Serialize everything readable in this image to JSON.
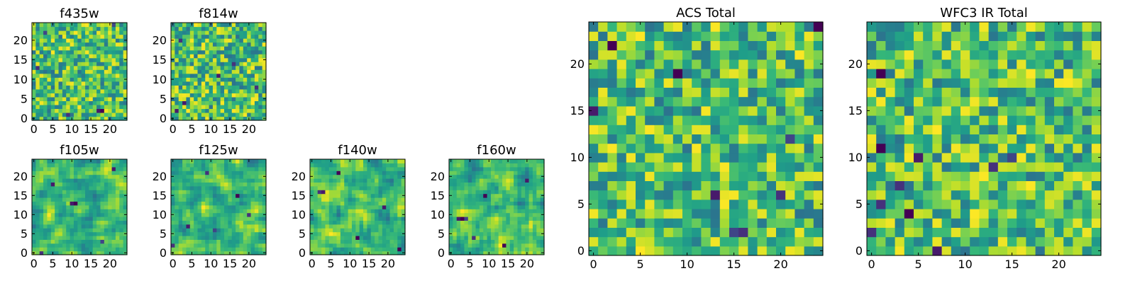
{
  "chart_data": [
    {
      "type": "heatmap",
      "title": "f435w",
      "xticks": [
        0,
        5,
        10,
        15,
        20
      ],
      "yticks": [
        0,
        5,
        10,
        15,
        20
      ],
      "grid_size": 25,
      "xlim": [
        -0.5,
        24.5
      ],
      "ylim": [
        -0.5,
        24.5
      ],
      "colormap": "viridis",
      "seed": 1,
      "smooth": 0,
      "dark_cells": [
        [
          9,
          1
        ],
        [
          17,
          2
        ],
        [
          18,
          2
        ],
        [
          3,
          22
        ],
        [
          21,
          24
        ],
        [
          1,
          13
        ]
      ]
    },
    {
      "type": "heatmap",
      "title": "f814w",
      "xticks": [
        0,
        5,
        10,
        15,
        20
      ],
      "yticks": [
        0,
        5,
        10,
        15,
        20
      ],
      "grid_size": 25,
      "xlim": [
        -0.5,
        24.5
      ],
      "ylim": [
        -0.5,
        24.5
      ],
      "colormap": "viridis",
      "seed": 2,
      "smooth": 0,
      "dark_cells": [
        [
          1,
          2
        ],
        [
          3,
          4
        ],
        [
          12,
          11
        ],
        [
          16,
          14
        ],
        [
          2,
          20
        ],
        [
          22,
          8
        ]
      ]
    },
    {
      "type": "heatmap",
      "title": "f105w",
      "xticks": [
        0,
        5,
        10,
        15,
        20
      ],
      "yticks": [
        0,
        5,
        10,
        15,
        20
      ],
      "grid_size": 25,
      "xlim": [
        -0.5,
        24.5
      ],
      "ylim": [
        -0.5,
        24.5
      ],
      "colormap": "viridis",
      "seed": 3,
      "smooth": 1,
      "dark_cells": [
        [
          2,
          0
        ],
        [
          10,
          13
        ],
        [
          11,
          13
        ],
        [
          18,
          3
        ],
        [
          5,
          18
        ],
        [
          21,
          22
        ]
      ]
    },
    {
      "type": "heatmap",
      "title": "f125w",
      "xticks": [
        0,
        5,
        10,
        15,
        20
      ],
      "yticks": [
        0,
        5,
        10,
        15,
        20
      ],
      "grid_size": 25,
      "xlim": [
        -0.5,
        24.5
      ],
      "ylim": [
        -0.5,
        24.5
      ],
      "colormap": "viridis",
      "seed": 4,
      "smooth": 1,
      "dark_cells": [
        [
          0,
          2
        ],
        [
          4,
          7
        ],
        [
          11,
          6
        ],
        [
          17,
          15
        ],
        [
          20,
          10
        ],
        [
          9,
          21
        ]
      ]
    },
    {
      "type": "heatmap",
      "title": "f140w",
      "xticks": [
        0,
        5,
        10,
        15,
        20
      ],
      "yticks": [
        0,
        5,
        10,
        15,
        20
      ],
      "grid_size": 25,
      "xlim": [
        -0.5,
        24.5
      ],
      "ylim": [
        -0.5,
        24.5
      ],
      "colormap": "viridis",
      "seed": 5,
      "smooth": 1,
      "dark_cells": [
        [
          2,
          16
        ],
        [
          3,
          16
        ],
        [
          12,
          4
        ],
        [
          19,
          12
        ],
        [
          7,
          21
        ],
        [
          23,
          1
        ]
      ]
    },
    {
      "type": "heatmap",
      "title": "f160w",
      "xticks": [
        0,
        5,
        10,
        15,
        20
      ],
      "yticks": [
        0,
        5,
        10,
        15,
        20
      ],
      "grid_size": 25,
      "xlim": [
        -0.5,
        24.5
      ],
      "ylim": [
        -0.5,
        24.5
      ],
      "colormap": "viridis",
      "seed": 6,
      "smooth": 1,
      "dark_cells": [
        [
          2,
          9
        ],
        [
          3,
          9
        ],
        [
          4,
          9
        ],
        [
          9,
          15
        ],
        [
          14,
          2
        ],
        [
          20,
          19
        ],
        [
          6,
          4
        ]
      ]
    },
    {
      "type": "heatmap",
      "title": "ACS Total",
      "xticks": [
        0,
        5,
        10,
        15,
        20
      ],
      "yticks": [
        0,
        5,
        10,
        15,
        20
      ],
      "grid_size": 25,
      "xlim": [
        -0.5,
        24.5
      ],
      "ylim": [
        -0.5,
        24.5
      ],
      "colormap": "viridis",
      "seed": 7,
      "smooth": 0,
      "dark_cells": [
        [
          15,
          2
        ],
        [
          16,
          2
        ],
        [
          2,
          22
        ],
        [
          9,
          19
        ],
        [
          24,
          24
        ],
        [
          20,
          6
        ],
        [
          21,
          12
        ],
        [
          13,
          6
        ],
        [
          0,
          15
        ]
      ]
    },
    {
      "type": "heatmap",
      "title": "WFC3 IR Total",
      "xticks": [
        0,
        5,
        10,
        15,
        20
      ],
      "yticks": [
        0,
        5,
        10,
        15,
        20
      ],
      "grid_size": 25,
      "xlim": [
        -0.5,
        24.5
      ],
      "ylim": [
        -0.5,
        24.5
      ],
      "colormap": "viridis",
      "seed": 8,
      "smooth": 0,
      "dark_cells": [
        [
          1,
          19
        ],
        [
          1,
          11
        ],
        [
          5,
          10
        ],
        [
          0,
          2
        ],
        [
          1,
          5
        ],
        [
          4,
          4
        ],
        [
          7,
          0
        ],
        [
          15,
          10
        ],
        [
          13,
          9
        ],
        [
          3,
          7
        ]
      ]
    }
  ]
}
